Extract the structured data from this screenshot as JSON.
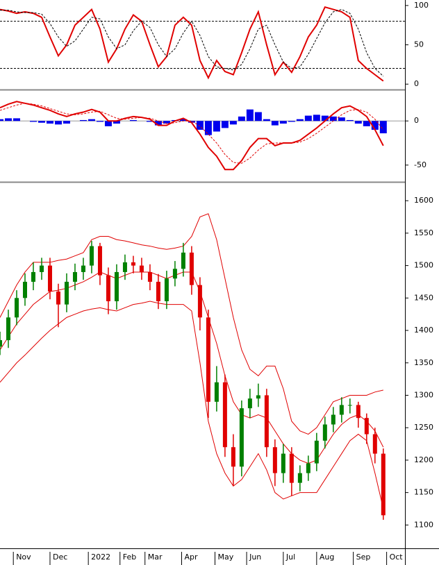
{
  "chart_data": [
    {
      "type": "stochastic",
      "x": [
        0,
        5,
        10,
        15,
        20,
        25,
        30,
        35,
        40,
        45,
        50,
        55,
        60,
        65,
        70,
        75,
        80,
        85,
        90,
        95,
        100,
        105,
        110,
        115,
        120,
        125,
        130,
        135,
        140,
        145,
        150,
        155,
        160,
        165,
        170,
        175,
        180,
        185,
        190,
        195,
        200,
        205,
        210,
        215,
        220,
        225,
        230
      ],
      "series": [
        {
          "color": "#e00000",
          "style": "solid",
          "values": [
            95,
            93,
            90,
            92,
            90,
            85,
            60,
            36,
            50,
            75,
            85,
            95,
            70,
            28,
            45,
            70,
            88,
            80,
            50,
            22,
            35,
            75,
            85,
            75,
            30,
            8,
            30,
            16,
            12,
            40,
            70,
            92,
            50,
            12,
            28,
            15,
            35,
            60,
            75,
            98,
            95,
            92,
            85,
            30,
            20,
            12,
            4
          ]
        },
        {
          "color": "#000000",
          "style": "dashed",
          "values": [
            94,
            94,
            92,
            91,
            91,
            89,
            77,
            60,
            48,
            55,
            70,
            85,
            83,
            60,
            45,
            50,
            68,
            80,
            72,
            50,
            35,
            45,
            65,
            80,
            62,
            35,
            22,
            20,
            18,
            25,
            45,
            70,
            75,
            50,
            28,
            20,
            22,
            38,
            58,
            78,
            92,
            95,
            90,
            70,
            40,
            20,
            10
          ]
        }
      ],
      "levels": [
        20,
        80
      ],
      "xlim": [
        0,
        243
      ],
      "ylim": [
        -6,
        107
      ],
      "yticks": [
        0,
        50,
        100
      ]
    },
    {
      "type": "macd",
      "x": [
        0,
        5,
        10,
        15,
        20,
        25,
        30,
        35,
        40,
        45,
        50,
        55,
        60,
        65,
        70,
        75,
        80,
        85,
        90,
        95,
        100,
        105,
        110,
        115,
        120,
        125,
        130,
        135,
        140,
        145,
        150,
        155,
        160,
        165,
        170,
        175,
        180,
        185,
        190,
        195,
        200,
        205,
        210,
        215,
        220,
        225,
        230
      ],
      "histogram": {
        "color": "#0000ee",
        "values": [
          2,
          3,
          3,
          0,
          -1,
          -2,
          -3,
          -4,
          -3,
          0,
          1,
          2,
          -1,
          -6,
          -3,
          0,
          1,
          0,
          -1,
          -5,
          -3,
          1,
          2,
          -2,
          -10,
          -16,
          -12,
          -8,
          -4,
          5,
          13,
          10,
          2,
          -5,
          -3,
          -1,
          2,
          6,
          7,
          6,
          5,
          4,
          1,
          -3,
          -6,
          -10,
          -14
        ]
      },
      "series": [
        {
          "color": "#e00000",
          "style": "solid",
          "values": [
            15,
            19,
            22,
            20,
            18,
            15,
            12,
            8,
            5,
            8,
            10,
            13,
            10,
            0,
            0,
            3,
            5,
            4,
            2,
            -5,
            -5,
            0,
            3,
            -2,
            -15,
            -30,
            -40,
            -55,
            -55,
            -45,
            -30,
            -20,
            -20,
            -28,
            -25,
            -25,
            -22,
            -15,
            -8,
            0,
            8,
            15,
            17,
            12,
            5,
            -10,
            -28
          ]
        },
        {
          "color": "#e00000",
          "style": "dashed",
          "values": [
            12,
            15,
            18,
            20,
            19,
            17,
            14,
            11,
            8,
            7,
            8,
            10,
            11,
            7,
            3,
            2,
            3,
            4,
            3,
            0,
            -3,
            -2,
            0,
            0,
            -6,
            -15,
            -25,
            -38,
            -47,
            -48,
            -42,
            -33,
            -26,
            -25,
            -25,
            -25,
            -24,
            -20,
            -14,
            -7,
            0,
            7,
            12,
            13,
            10,
            2,
            -10
          ]
        }
      ],
      "xlim": [
        0,
        243
      ],
      "ylim": [
        -69,
        34
      ],
      "yticks": [
        -50,
        0
      ]
    },
    {
      "type": "candlestick",
      "x": [
        0,
        5,
        10,
        15,
        20,
        25,
        30,
        35,
        40,
        45,
        50,
        55,
        60,
        65,
        70,
        75,
        80,
        85,
        90,
        95,
        100,
        105,
        110,
        115,
        120,
        125,
        130,
        135,
        140,
        145,
        150,
        155,
        160,
        165,
        170,
        175,
        180,
        185,
        190,
        195,
        200,
        205,
        210,
        215,
        220,
        225,
        230
      ],
      "open": [
        1375,
        1385,
        1420,
        1450,
        1475,
        1490,
        1500,
        1460,
        1440,
        1475,
        1490,
        1500,
        1530,
        1485,
        1445,
        1490,
        1505,
        1500,
        1490,
        1475,
        1445,
        1480,
        1495,
        1520,
        1470,
        1420,
        1290,
        1320,
        1220,
        1190,
        1280,
        1295,
        1300,
        1220,
        1180,
        1210,
        1165,
        1180,
        1195,
        1230,
        1255,
        1270,
        1285,
        1285,
        1265,
        1240,
        1210
      ],
      "high": [
        1398,
        1432,
        1462,
        1488,
        1505,
        1512,
        1512,
        1472,
        1488,
        1503,
        1512,
        1538,
        1535,
        1497,
        1502,
        1517,
        1515,
        1512,
        1502,
        1487,
        1492,
        1507,
        1535,
        1530,
        1482,
        1432,
        1345,
        1332,
        1240,
        1292,
        1310,
        1318,
        1310,
        1232,
        1225,
        1220,
        1192,
        1207,
        1242,
        1267,
        1282,
        1297,
        1295,
        1290,
        1272,
        1250,
        1218
      ],
      "low": [
        1362,
        1373,
        1408,
        1438,
        1462,
        1478,
        1448,
        1405,
        1428,
        1462,
        1478,
        1488,
        1470,
        1425,
        1432,
        1478,
        1488,
        1478,
        1462,
        1433,
        1433,
        1468,
        1483,
        1455,
        1400,
        1265,
        1275,
        1205,
        1160,
        1175,
        1265,
        1282,
        1205,
        1160,
        1165,
        1145,
        1152,
        1168,
        1183,
        1218,
        1243,
        1258,
        1272,
        1250,
        1225,
        1195,
        1108
      ],
      "close": [
        1385,
        1420,
        1450,
        1475,
        1490,
        1500,
        1460,
        1440,
        1475,
        1490,
        1500,
        1530,
        1485,
        1445,
        1490,
        1505,
        1500,
        1490,
        1475,
        1445,
        1480,
        1495,
        1520,
        1470,
        1420,
        1290,
        1320,
        1220,
        1190,
        1280,
        1295,
        1300,
        1220,
        1180,
        1210,
        1165,
        1180,
        1195,
        1230,
        1255,
        1270,
        1285,
        1285,
        1265,
        1240,
        1210,
        1115
      ],
      "up_color": "#008000",
      "down_color": "#e00000",
      "bands": {
        "color": "#e00000",
        "upper": [
          1420,
          1445,
          1470,
          1490,
          1505,
          1505,
          1505,
          1508,
          1510,
          1515,
          1520,
          1540,
          1545,
          1545,
          1540,
          1538,
          1535,
          1532,
          1530,
          1527,
          1525,
          1527,
          1530,
          1545,
          1575,
          1580,
          1540,
          1480,
          1420,
          1370,
          1340,
          1330,
          1345,
          1345,
          1310,
          1260,
          1245,
          1240,
          1250,
          1270,
          1290,
          1295,
          1300,
          1300,
          1300,
          1305,
          1308
        ],
        "middle": [
          1370,
          1390,
          1410,
          1425,
          1440,
          1450,
          1460,
          1462,
          1465,
          1470,
          1475,
          1482,
          1490,
          1485,
          1480,
          1485,
          1490,
          1490,
          1490,
          1485,
          1480,
          1485,
          1490,
          1490,
          1460,
          1420,
          1380,
          1330,
          1290,
          1270,
          1265,
          1270,
          1265,
          1245,
          1225,
          1210,
          1200,
          1195,
          1200,
          1220,
          1240,
          1255,
          1265,
          1270,
          1260,
          1245,
          1220
        ],
        "lower": [
          1320,
          1335,
          1350,
          1362,
          1375,
          1388,
          1400,
          1410,
          1420,
          1425,
          1430,
          1433,
          1435,
          1432,
          1430,
          1435,
          1440,
          1442,
          1445,
          1442,
          1440,
          1440,
          1440,
          1430,
          1350,
          1260,
          1210,
          1180,
          1160,
          1170,
          1190,
          1210,
          1185,
          1150,
          1140,
          1145,
          1150,
          1150,
          1150,
          1170,
          1190,
          1210,
          1230,
          1240,
          1230,
          1180,
          1125
        ]
      },
      "xlim": [
        0,
        243
      ],
      "ylim": [
        1064,
        1628
      ],
      "yticks": [
        1100,
        1150,
        1200,
        1250,
        1300,
        1350,
        1400,
        1450,
        1500,
        1550,
        1600
      ],
      "xticks": [
        {
          "value": 8,
          "label": "Nov"
        },
        {
          "value": 30,
          "label": "Dec"
        },
        {
          "value": 53,
          "label": "2022"
        },
        {
          "value": 72,
          "label": "Feb"
        },
        {
          "value": 87,
          "label": "Mar"
        },
        {
          "value": 109,
          "label": "Apr"
        },
        {
          "value": 129,
          "label": "May"
        },
        {
          "value": 148,
          "label": "Jun"
        },
        {
          "value": 170,
          "label": "Jul"
        },
        {
          "value": 190,
          "label": "Aug"
        },
        {
          "value": 212,
          "label": "Sep"
        },
        {
          "value": 232,
          "label": "Oct"
        }
      ]
    }
  ]
}
